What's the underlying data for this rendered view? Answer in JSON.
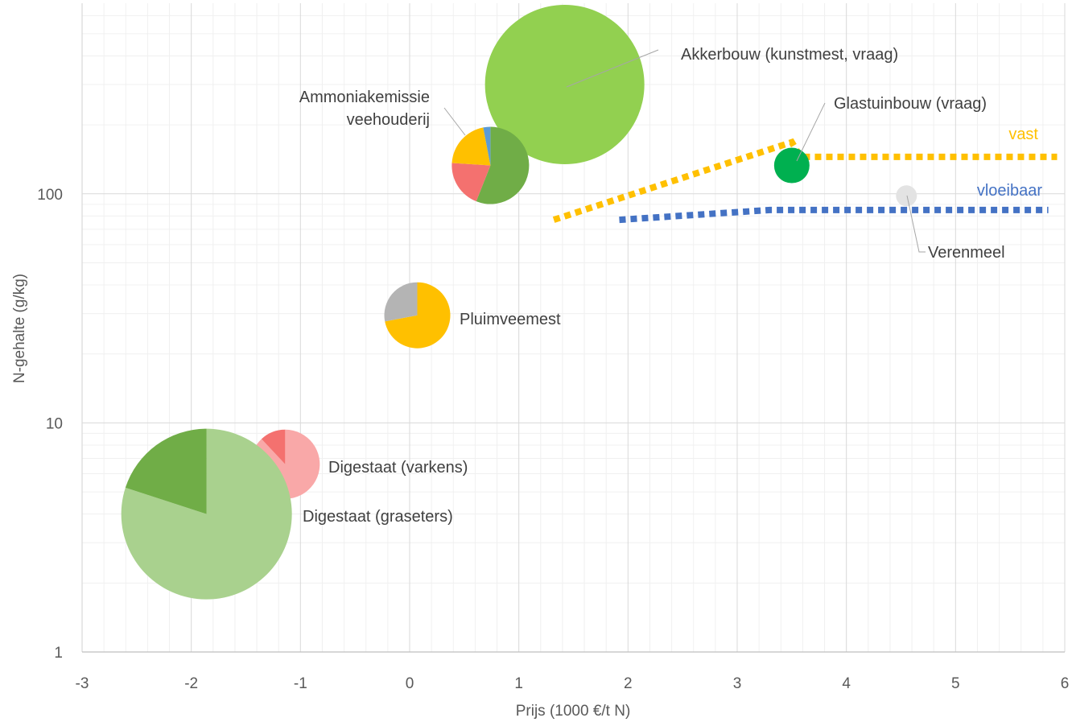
{
  "chart_data": {
    "type": "scatter",
    "title": "",
    "xlabel": "Prijs (1000 €/t N)",
    "ylabel": "N-gehalte (g/kg)",
    "xlim": [
      -3,
      6
    ],
    "ylim": [
      1,
      650
    ],
    "yscale": "log",
    "grid": true,
    "x_ticks": [
      "-3",
      "-2",
      "-1",
      "0",
      "1",
      "2",
      "3",
      "4",
      "5",
      "6"
    ],
    "y_ticks": [
      "1",
      "10",
      "100"
    ],
    "bubbles": [
      {
        "label": "Akkerbouw (kunstmest, vraag)",
        "x": 1.42,
        "y": 300,
        "slices": [
          {
            "fraction": 1.0,
            "color": "#92d050"
          }
        ]
      },
      {
        "label": "Ammoniakemissie\nveehouderij",
        "x": 0.74,
        "y": 133,
        "slices": [
          {
            "fraction": 0.56,
            "color": "#70ad47"
          },
          {
            "fraction": 0.2,
            "color": "#f4716f"
          },
          {
            "fraction": 0.21,
            "color": "#ffc000"
          },
          {
            "fraction": 0.03,
            "color": "#5b9bd5"
          }
        ]
      },
      {
        "label": "Glastuinbouw (vraag)",
        "x": 3.5,
        "y": 133,
        "slices": [
          {
            "fraction": 1.0,
            "color": "#00b050"
          }
        ]
      },
      {
        "label": "Verenmeel",
        "x": 4.55,
        "y": 98,
        "slices": [
          {
            "fraction": 1.0,
            "color": "#e3e3e3"
          }
        ]
      },
      {
        "label": "Pluimveemest",
        "x": 0.07,
        "y": 29.5,
        "slices": [
          {
            "fraction": 0.72,
            "color": "#ffc000"
          },
          {
            "fraction": 0.28,
            "color": "#b4b4b4"
          }
        ]
      },
      {
        "label": "Digestaat (varkens)",
        "x": -1.14,
        "y": 6.6,
        "slices": [
          {
            "fraction": 0.88,
            "color": "#f9a8a8"
          },
          {
            "fraction": 0.12,
            "color": "#f4716f"
          }
        ]
      },
      {
        "label": "Digestaat (graseters)",
        "x": -1.86,
        "y": 4.0,
        "slices": [
          {
            "fraction": 0.8,
            "color": "#a9d18e"
          },
          {
            "fraction": 0.2,
            "color": "#70ad47"
          }
        ]
      }
    ],
    "series": [
      {
        "name": "vast",
        "color": "#ffc000",
        "points": [
          [
            1.32,
            77
          ],
          [
            3.5,
            168
          ],
          [
            3.58,
            145
          ],
          [
            5.93,
            145
          ]
        ]
      },
      {
        "name": "vloeibaar",
        "color": "#4472c4",
        "points": [
          [
            1.92,
            77
          ],
          [
            3.3,
            85
          ],
          [
            5.85,
            85
          ]
        ]
      }
    ]
  }
}
